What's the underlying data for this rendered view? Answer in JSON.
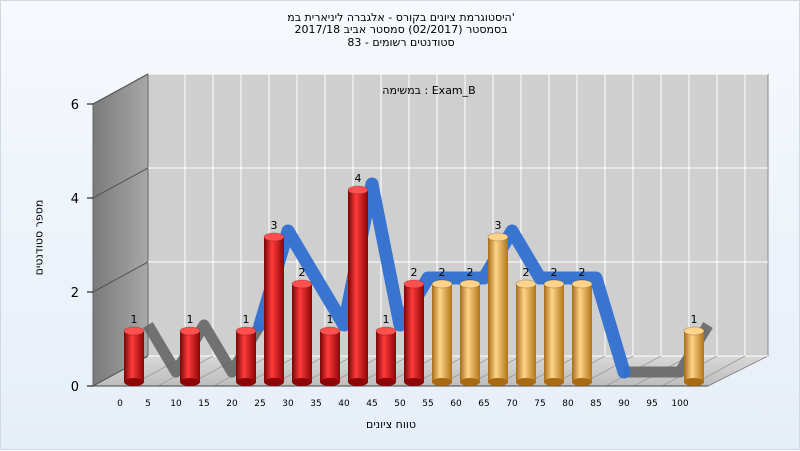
{
  "chart_data": {
    "type": "bar",
    "title": [
      "היסטוגרמת ציונים בקורס - אלגברה ליניארית במ'",
      "בסמסטר  (02/2017)  סמסטר אביב 2017/18",
      "סטודנטים רשומים - 83"
    ],
    "subtitle": "במשימה : Exam_B",
    "xlabel": "טווח ציונים",
    "ylabel": "מספר סטודנטים",
    "x_ticks": [
      0,
      5,
      10,
      15,
      20,
      25,
      30,
      35,
      40,
      45,
      50,
      55,
      60,
      65,
      70,
      75,
      80,
      85,
      90,
      95,
      100
    ],
    "y_ticks": [
      0,
      2,
      4,
      6
    ],
    "ylim": [
      0,
      6
    ],
    "bars": [
      {
        "x": 0,
        "value": 1,
        "label": "1",
        "color": "red"
      },
      {
        "x": 10,
        "value": 1,
        "label": "1",
        "color": "red"
      },
      {
        "x": 20,
        "value": 1,
        "label": "1",
        "color": "red"
      },
      {
        "x": 25,
        "value": 3,
        "label": "3",
        "color": "red"
      },
      {
        "x": 30,
        "value": 2,
        "label": "2",
        "color": "red"
      },
      {
        "x": 35,
        "value": 1,
        "label": "1",
        "color": "red"
      },
      {
        "x": 40,
        "value": 4,
        "label": "4",
        "color": "red"
      },
      {
        "x": 45,
        "value": 1,
        "label": "1",
        "color": "red"
      },
      {
        "x": 50,
        "value": 2,
        "label": "2",
        "color": "red"
      },
      {
        "x": 55,
        "value": 2,
        "label": "2",
        "color": "orange"
      },
      {
        "x": 60,
        "value": 2,
        "label": "2",
        "color": "orange"
      },
      {
        "x": 65,
        "value": 3,
        "label": "3",
        "color": "orange"
      },
      {
        "x": 70,
        "value": 2,
        "label": "2",
        "color": "orange"
      },
      {
        "x": 75,
        "value": 2,
        "label": "2",
        "color": "orange"
      },
      {
        "x": 80,
        "value": 2,
        "label": "2",
        "color": "orange"
      },
      {
        "x": 100,
        "value": 1,
        "label": "1",
        "color": "orange"
      }
    ],
    "grid": true,
    "colors": {
      "red": "#e3161b",
      "orange": "#f0b24a",
      "curve_blue": "#2f6fd0",
      "curve_gray": "#666666"
    }
  }
}
